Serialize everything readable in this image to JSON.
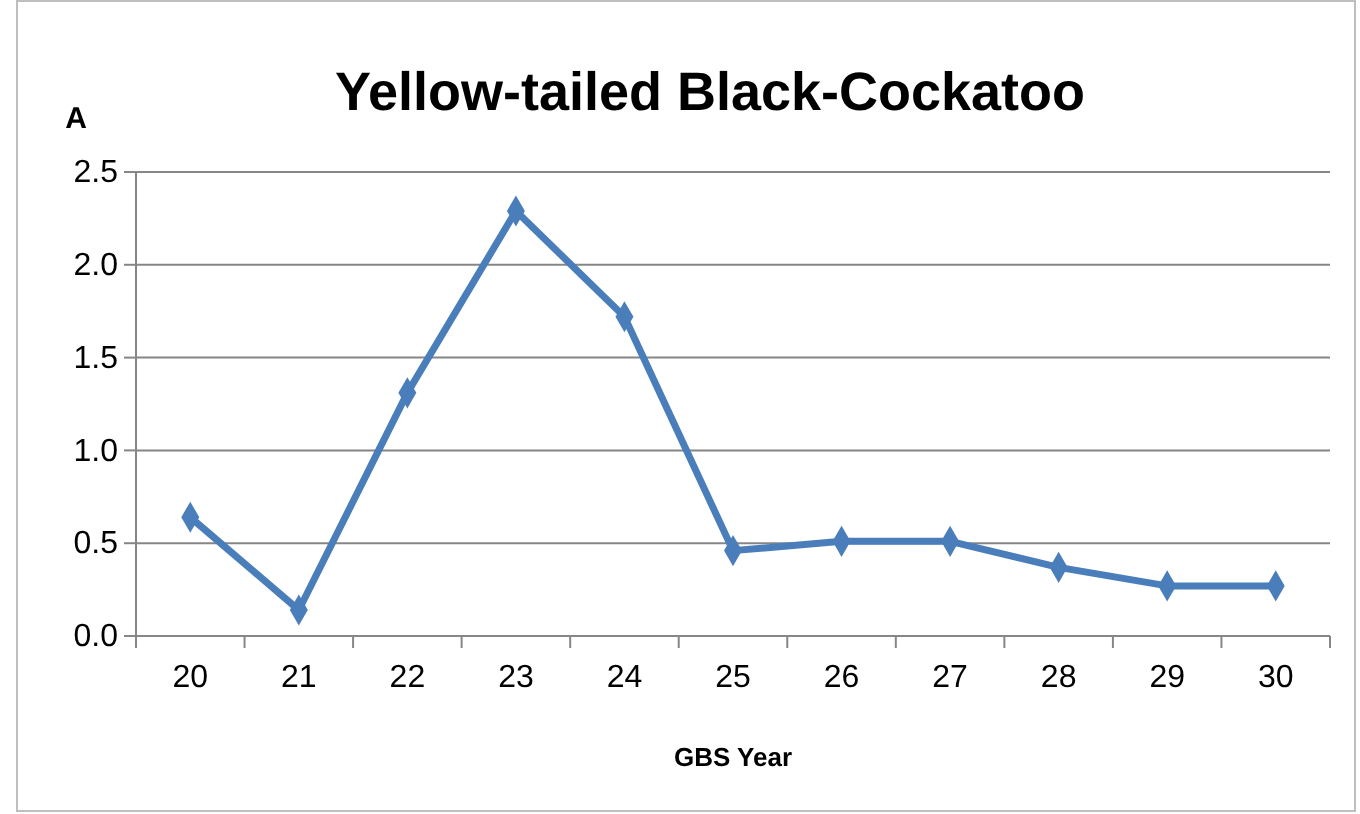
{
  "chart_data": {
    "type": "line",
    "title": "Yellow-tailed Black-Cockatoo",
    "ylabel": "A",
    "xlabel": "GBS Year",
    "categories": [
      "20",
      "21",
      "22",
      "23",
      "24",
      "25",
      "26",
      "27",
      "28",
      "29",
      "30"
    ],
    "series": [
      {
        "color": "#4a7ebb",
        "values": [
          0.64,
          0.14,
          1.31,
          2.29,
          1.72,
          0.46,
          0.51,
          0.51,
          0.37,
          0.27,
          0.27
        ]
      }
    ],
    "ylim": [
      0,
      2.5
    ],
    "yticks": [
      {
        "value": 0,
        "label": "0.0"
      },
      {
        "value": 0.5,
        "label": "0.5"
      },
      {
        "value": 1,
        "label": "1.0"
      },
      {
        "value": 1.5,
        "label": "1.5"
      },
      {
        "value": 2,
        "label": "2.0"
      },
      {
        "value": 2.5,
        "label": "2.5"
      }
    ],
    "grid": "y",
    "marker": "diamond",
    "line_style": "solid"
  }
}
